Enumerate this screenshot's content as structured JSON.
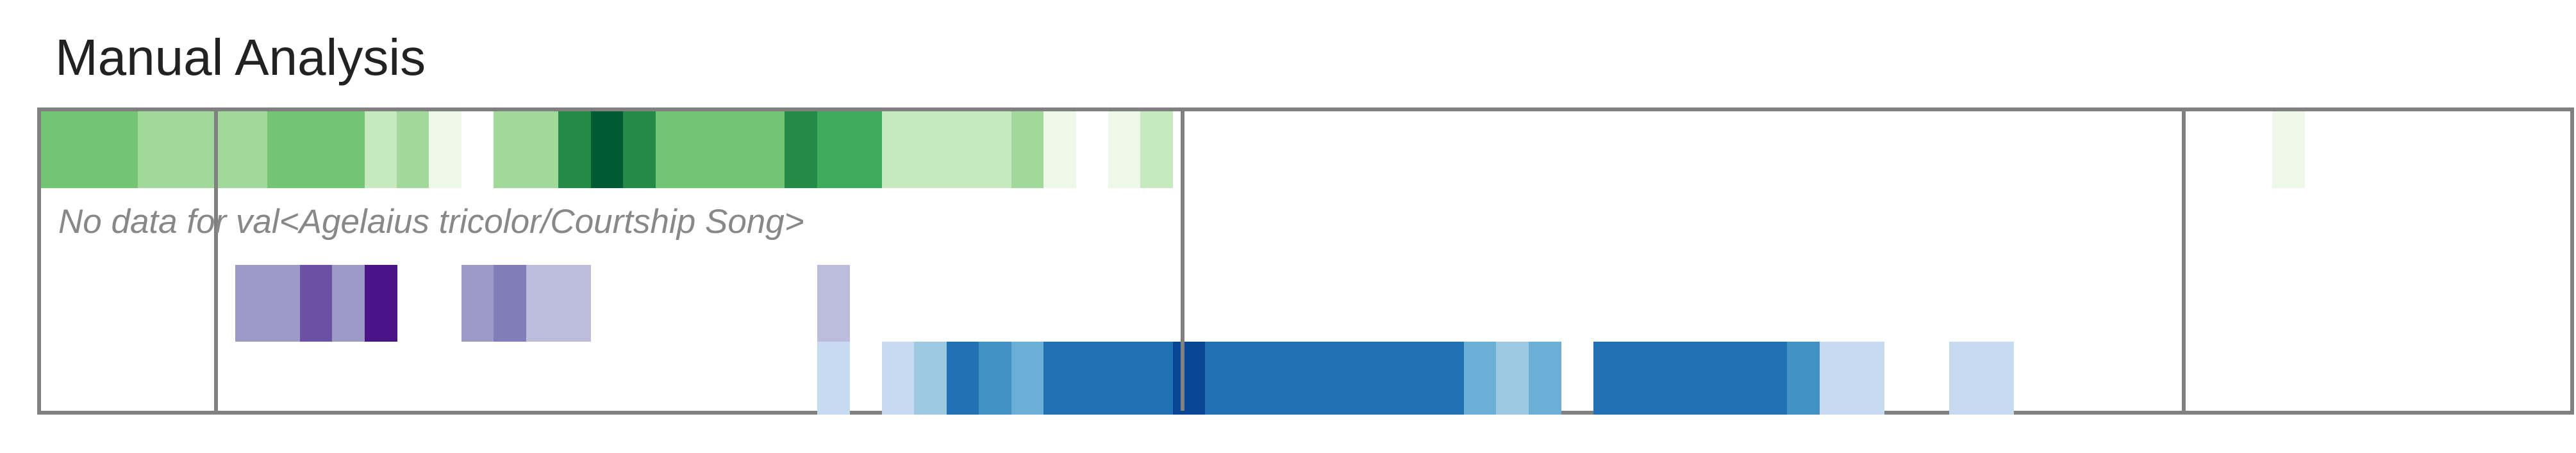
{
  "title": "Manual Analysis",
  "no_data_message": "No data for val<Agelaius tricolor/Courtship Song>",
  "palettes": {
    "greens": [
      "#edf8e9",
      "#c7e9c0",
      "#a1d99b",
      "#74c476",
      "#41ab5d",
      "#238b45",
      "#005a32"
    ],
    "purples": [
      "#dadaeb",
      "#bcbddc",
      "#9e9ac8",
      "#807dba",
      "#6a51a3",
      "#4a1486"
    ],
    "blues": [
      "#deebf7",
      "#c6dbef",
      "#9ecae1",
      "#6baed6",
      "#4292c6",
      "#2171b5",
      "#084594"
    ]
  },
  "rows": [
    {
      "name": "green-row",
      "palette": "greens",
      "levels": [
        0.55,
        0.55,
        0.55,
        0.4,
        0.4,
        0.4,
        0.35,
        0.55,
        0.55,
        0.55,
        0.2,
        0.35,
        0.05,
        0,
        0.25,
        0.4,
        0.75,
        1.0,
        0.75,
        0.55,
        0.55,
        0.55,
        0.55,
        0.75,
        0.6,
        0.65,
        0.12,
        0.12,
        0.2,
        0.2,
        0.35,
        0.05,
        0,
        0.05,
        0.12,
        0,
        0,
        0,
        0,
        0,
        0,
        0,
        0,
        0,
        0,
        0,
        0,
        0,
        0,
        0,
        0,
        0,
        0,
        0,
        0,
        0,
        0,
        0,
        0,
        0,
        0,
        0,
        0,
        0,
        0,
        0,
        0,
        0,
        0,
        0.05,
        0,
        0,
        0,
        0,
        0,
        0,
        0,
        0,
        0,
        0
      ]
    },
    {
      "name": "purple-row",
      "palette": "purples",
      "levels": [
        0,
        0,
        0,
        0,
        0,
        0,
        0.3,
        0.45,
        0.8,
        0.3,
        1.0,
        0,
        0,
        0.3,
        0.6,
        0.15,
        0.15,
        0,
        0,
        0,
        0,
        0,
        0,
        0,
        0.15,
        0,
        0,
        0,
        0,
        0,
        0,
        0,
        0,
        0,
        0,
        0,
        0,
        0,
        0,
        0,
        0,
        0,
        0,
        0,
        0,
        0,
        0,
        0,
        0,
        0,
        0,
        0,
        0,
        0,
        0,
        0,
        0,
        0,
        0,
        0,
        0,
        0,
        0,
        0,
        0,
        0,
        0,
        0,
        0,
        0,
        0,
        0,
        0,
        0,
        0,
        0,
        0,
        0,
        0,
        0
      ]
    },
    {
      "name": "blue-row",
      "palette": "blues",
      "levels": [
        0,
        0,
        0,
        0,
        0,
        0,
        0,
        0,
        0,
        0,
        0,
        0,
        0,
        0,
        0,
        0,
        0,
        0,
        0,
        0,
        0,
        0,
        0,
        0,
        0.1,
        0,
        0.1,
        0.3,
        0.8,
        0.6,
        0.5,
        0.8,
        0.8,
        0.8,
        0.8,
        1.0,
        0.8,
        0.8,
        0.8,
        0.8,
        0.8,
        0.8,
        0.8,
        0.8,
        0.5,
        0.35,
        0.5,
        0,
        0.8,
        0.8,
        0.8,
        0.8,
        0.8,
        0.8,
        0.6,
        0.1,
        0.2,
        0,
        0,
        0.1,
        0.1,
        0,
        0,
        0,
        0,
        0,
        0,
        0,
        0,
        0,
        0,
        0,
        0,
        0,
        0,
        0,
        0,
        0,
        0,
        0
      ]
    }
  ]
}
